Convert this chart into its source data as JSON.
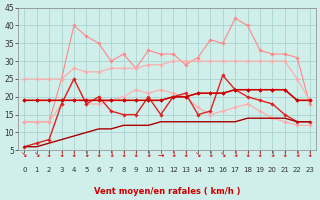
{
  "xlabel": "Vent moyen/en rafales ( km/h )",
  "bg_color": "#d0eeea",
  "grid_color": "#b0d8d4",
  "ylim": [
    5,
    45
  ],
  "yticks": [
    5,
    10,
    15,
    20,
    25,
    30,
    35,
    40,
    45
  ],
  "x_ticks": [
    0,
    1,
    2,
    3,
    4,
    5,
    6,
    7,
    8,
    9,
    10,
    11,
    12,
    13,
    14,
    15,
    16,
    17,
    18,
    19,
    20,
    21,
    22,
    23
  ],
  "series": [
    {
      "color": "#ff8888",
      "linewidth": 0.8,
      "marker": "D",
      "markersize": 1.8,
      "data": [
        13,
        13,
        13,
        25,
        40,
        37,
        35,
        30,
        32,
        28,
        33,
        32,
        32,
        29,
        31,
        36,
        35,
        42,
        40,
        33,
        32,
        32,
        31,
        18
      ]
    },
    {
      "color": "#ffaaaa",
      "linewidth": 0.8,
      "marker": "D",
      "markersize": 1.8,
      "data": [
        25,
        25,
        25,
        25,
        28,
        27,
        27,
        28,
        28,
        28,
        29,
        29,
        30,
        30,
        30,
        30,
        30,
        30,
        30,
        30,
        30,
        30,
        25,
        19
      ]
    },
    {
      "color": "#ffaaaa",
      "linewidth": 0.8,
      "marker": "D",
      "markersize": 1.8,
      "data": [
        13,
        13,
        13,
        18,
        25,
        18,
        18,
        19,
        20,
        22,
        21,
        22,
        21,
        20,
        17,
        15,
        16,
        17,
        18,
        16,
        14,
        13,
        12,
        12
      ]
    },
    {
      "color": "#cc2222",
      "linewidth": 1.0,
      "marker": "D",
      "markersize": 1.8,
      "data": [
        19,
        19,
        19,
        19,
        19,
        19,
        19,
        19,
        19,
        19,
        19,
        19,
        20,
        20,
        21,
        21,
        21,
        22,
        22,
        22,
        22,
        22,
        19,
        19
      ]
    },
    {
      "color": "#dd2222",
      "linewidth": 1.0,
      "marker": "D",
      "markersize": 1.8,
      "data": [
        6,
        7,
        8,
        18,
        25,
        18,
        20,
        16,
        15,
        15,
        20,
        15,
        20,
        21,
        15,
        16,
        26,
        22,
        20,
        19,
        18,
        15,
        13,
        13
      ]
    },
    {
      "color": "#cc0000",
      "linewidth": 1.0,
      "marker": "D",
      "markersize": 1.8,
      "data": [
        19,
        19,
        19,
        19,
        19,
        19,
        19,
        19,
        19,
        19,
        19,
        19,
        20,
        20,
        21,
        21,
        21,
        22,
        22,
        22,
        22,
        22,
        19,
        19
      ]
    },
    {
      "color": "#aa0000",
      "linewidth": 1.0,
      "marker": null,
      "markersize": 0,
      "data": [
        6,
        6,
        7,
        8,
        9,
        10,
        11,
        11,
        12,
        12,
        12,
        13,
        13,
        13,
        13,
        13,
        13,
        13,
        14,
        14,
        14,
        14,
        13,
        13
      ]
    }
  ],
  "arrow_chars": [
    "↘",
    "↘",
    "↓",
    "↓",
    "↓",
    "↓",
    "↓",
    "↓",
    "↓",
    "↓",
    "↓",
    "→",
    "↓",
    "↓",
    "↘",
    "↓",
    "↘",
    "↓",
    "↓",
    "↓",
    "↓",
    "↓",
    "↓",
    "↓"
  ],
  "arrow_color": "#cc0000"
}
